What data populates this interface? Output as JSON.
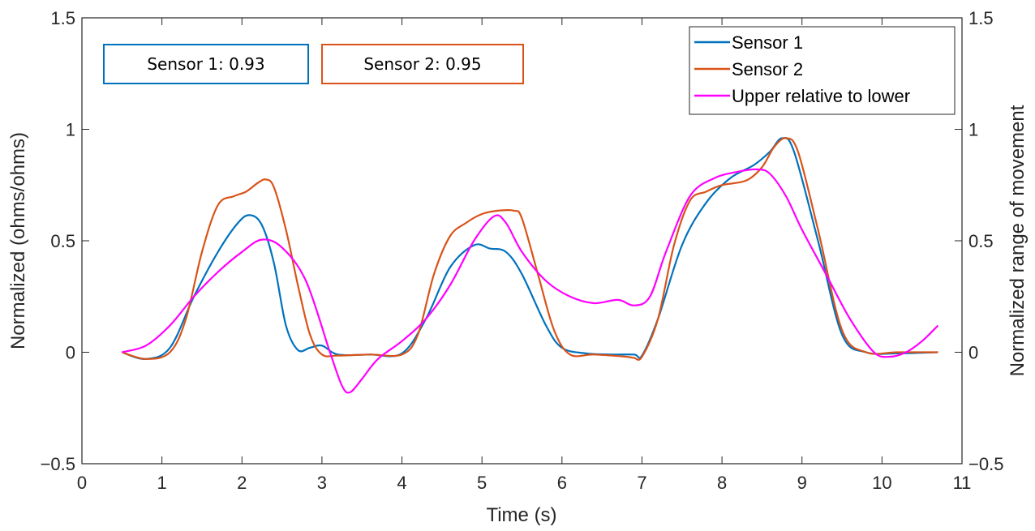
{
  "chart_data": {
    "type": "line",
    "xlabel": "Time (s)",
    "ylabel_left": "Normalized (ohms/ohms)",
    "ylabel_right": "Normalized range of movement",
    "xlim": [
      0,
      11
    ],
    "ylim": [
      -0.5,
      1.5
    ],
    "ylim_right": [
      -0.5,
      1.5
    ],
    "xticks": [
      "0",
      "1",
      "2",
      "3",
      "4",
      "5",
      "6",
      "7",
      "8",
      "9",
      "10",
      "11"
    ],
    "yticks": [
      "−0.5",
      "0",
      "0.5",
      "1",
      "1.5"
    ],
    "yticks_right": [
      "−0.5",
      "0",
      "0.5",
      "1",
      "1.5"
    ],
    "legend_position": "top-right",
    "grid": false,
    "annotations": [
      {
        "text": "Sensor 1: 0.93",
        "color": "#0072BD"
      },
      {
        "text": "Sensor 2: 0.95",
        "color": "#D95319"
      }
    ],
    "series": [
      {
        "name": "Sensor 1",
        "color": "#0072BD",
        "axis": "left",
        "x": [
          0.5,
          0.8,
          1.1,
          1.4,
          1.7,
          1.95,
          2.1,
          2.25,
          2.4,
          2.55,
          2.7,
          2.85,
          3.0,
          3.2,
          3.6,
          4.0,
          4.3,
          4.6,
          4.9,
          5.1,
          5.3,
          5.5,
          5.8,
          6.0,
          6.3,
          6.6,
          6.9,
          7.0,
          7.2,
          7.5,
          7.8,
          8.1,
          8.4,
          8.6,
          8.75,
          8.9,
          9.2,
          9.5,
          9.8,
          10.2,
          10.7
        ],
        "y": [
          0.0,
          -0.03,
          0.02,
          0.25,
          0.45,
          0.58,
          0.615,
          0.57,
          0.4,
          0.12,
          0.01,
          0.02,
          0.03,
          -0.01,
          -0.01,
          -0.005,
          0.15,
          0.38,
          0.48,
          0.465,
          0.45,
          0.35,
          0.12,
          0.02,
          -0.005,
          -0.01,
          -0.01,
          -0.015,
          0.15,
          0.48,
          0.67,
          0.78,
          0.84,
          0.9,
          0.96,
          0.9,
          0.5,
          0.08,
          0.0,
          -0.005,
          0.0
        ]
      },
      {
        "name": "Sensor 2",
        "color": "#D95319",
        "axis": "left",
        "x": [
          0.5,
          0.8,
          1.1,
          1.3,
          1.5,
          1.7,
          1.9,
          2.05,
          2.2,
          2.3,
          2.4,
          2.55,
          2.7,
          2.85,
          3.0,
          3.2,
          3.6,
          4.0,
          4.2,
          4.4,
          4.6,
          4.8,
          5.0,
          5.2,
          5.4,
          5.5,
          5.7,
          5.9,
          6.1,
          6.4,
          6.8,
          6.9,
          7.0,
          7.2,
          7.4,
          7.6,
          7.8,
          8.0,
          8.3,
          8.5,
          8.65,
          8.8,
          8.95,
          9.2,
          9.5,
          9.8,
          10.2,
          10.7
        ],
        "y": [
          0.0,
          -0.03,
          0.0,
          0.15,
          0.45,
          0.66,
          0.7,
          0.72,
          0.76,
          0.775,
          0.74,
          0.55,
          0.3,
          0.08,
          -0.01,
          -0.015,
          -0.01,
          -0.01,
          0.08,
          0.35,
          0.52,
          0.58,
          0.62,
          0.635,
          0.635,
          0.6,
          0.35,
          0.1,
          -0.01,
          -0.01,
          -0.02,
          -0.025,
          -0.02,
          0.15,
          0.48,
          0.68,
          0.72,
          0.75,
          0.77,
          0.83,
          0.92,
          0.96,
          0.9,
          0.55,
          0.1,
          0.0,
          0.0,
          0.0
        ]
      },
      {
        "name": "Upper relative to lower",
        "color": "#FF00FF",
        "axis": "right",
        "x": [
          0.5,
          0.8,
          1.1,
          1.4,
          1.7,
          2.0,
          2.25,
          2.5,
          2.8,
          3.1,
          3.25,
          3.35,
          3.5,
          3.7,
          4.0,
          4.3,
          4.6,
          4.9,
          5.15,
          5.3,
          5.5,
          5.8,
          6.1,
          6.4,
          6.7,
          6.9,
          7.1,
          7.3,
          7.6,
          7.9,
          8.2,
          8.45,
          8.6,
          8.8,
          9.0,
          9.3,
          9.6,
          9.9,
          10.1,
          10.3,
          10.5,
          10.7
        ],
        "y": [
          0.0,
          0.03,
          0.12,
          0.25,
          0.36,
          0.45,
          0.505,
          0.47,
          0.32,
          0.0,
          -0.15,
          -0.18,
          -0.12,
          -0.03,
          0.05,
          0.15,
          0.3,
          0.5,
          0.61,
          0.58,
          0.45,
          0.32,
          0.25,
          0.22,
          0.235,
          0.21,
          0.25,
          0.45,
          0.7,
          0.78,
          0.81,
          0.82,
          0.8,
          0.7,
          0.55,
          0.35,
          0.15,
          0.0,
          -0.02,
          0.0,
          0.05,
          0.12
        ]
      }
    ]
  }
}
